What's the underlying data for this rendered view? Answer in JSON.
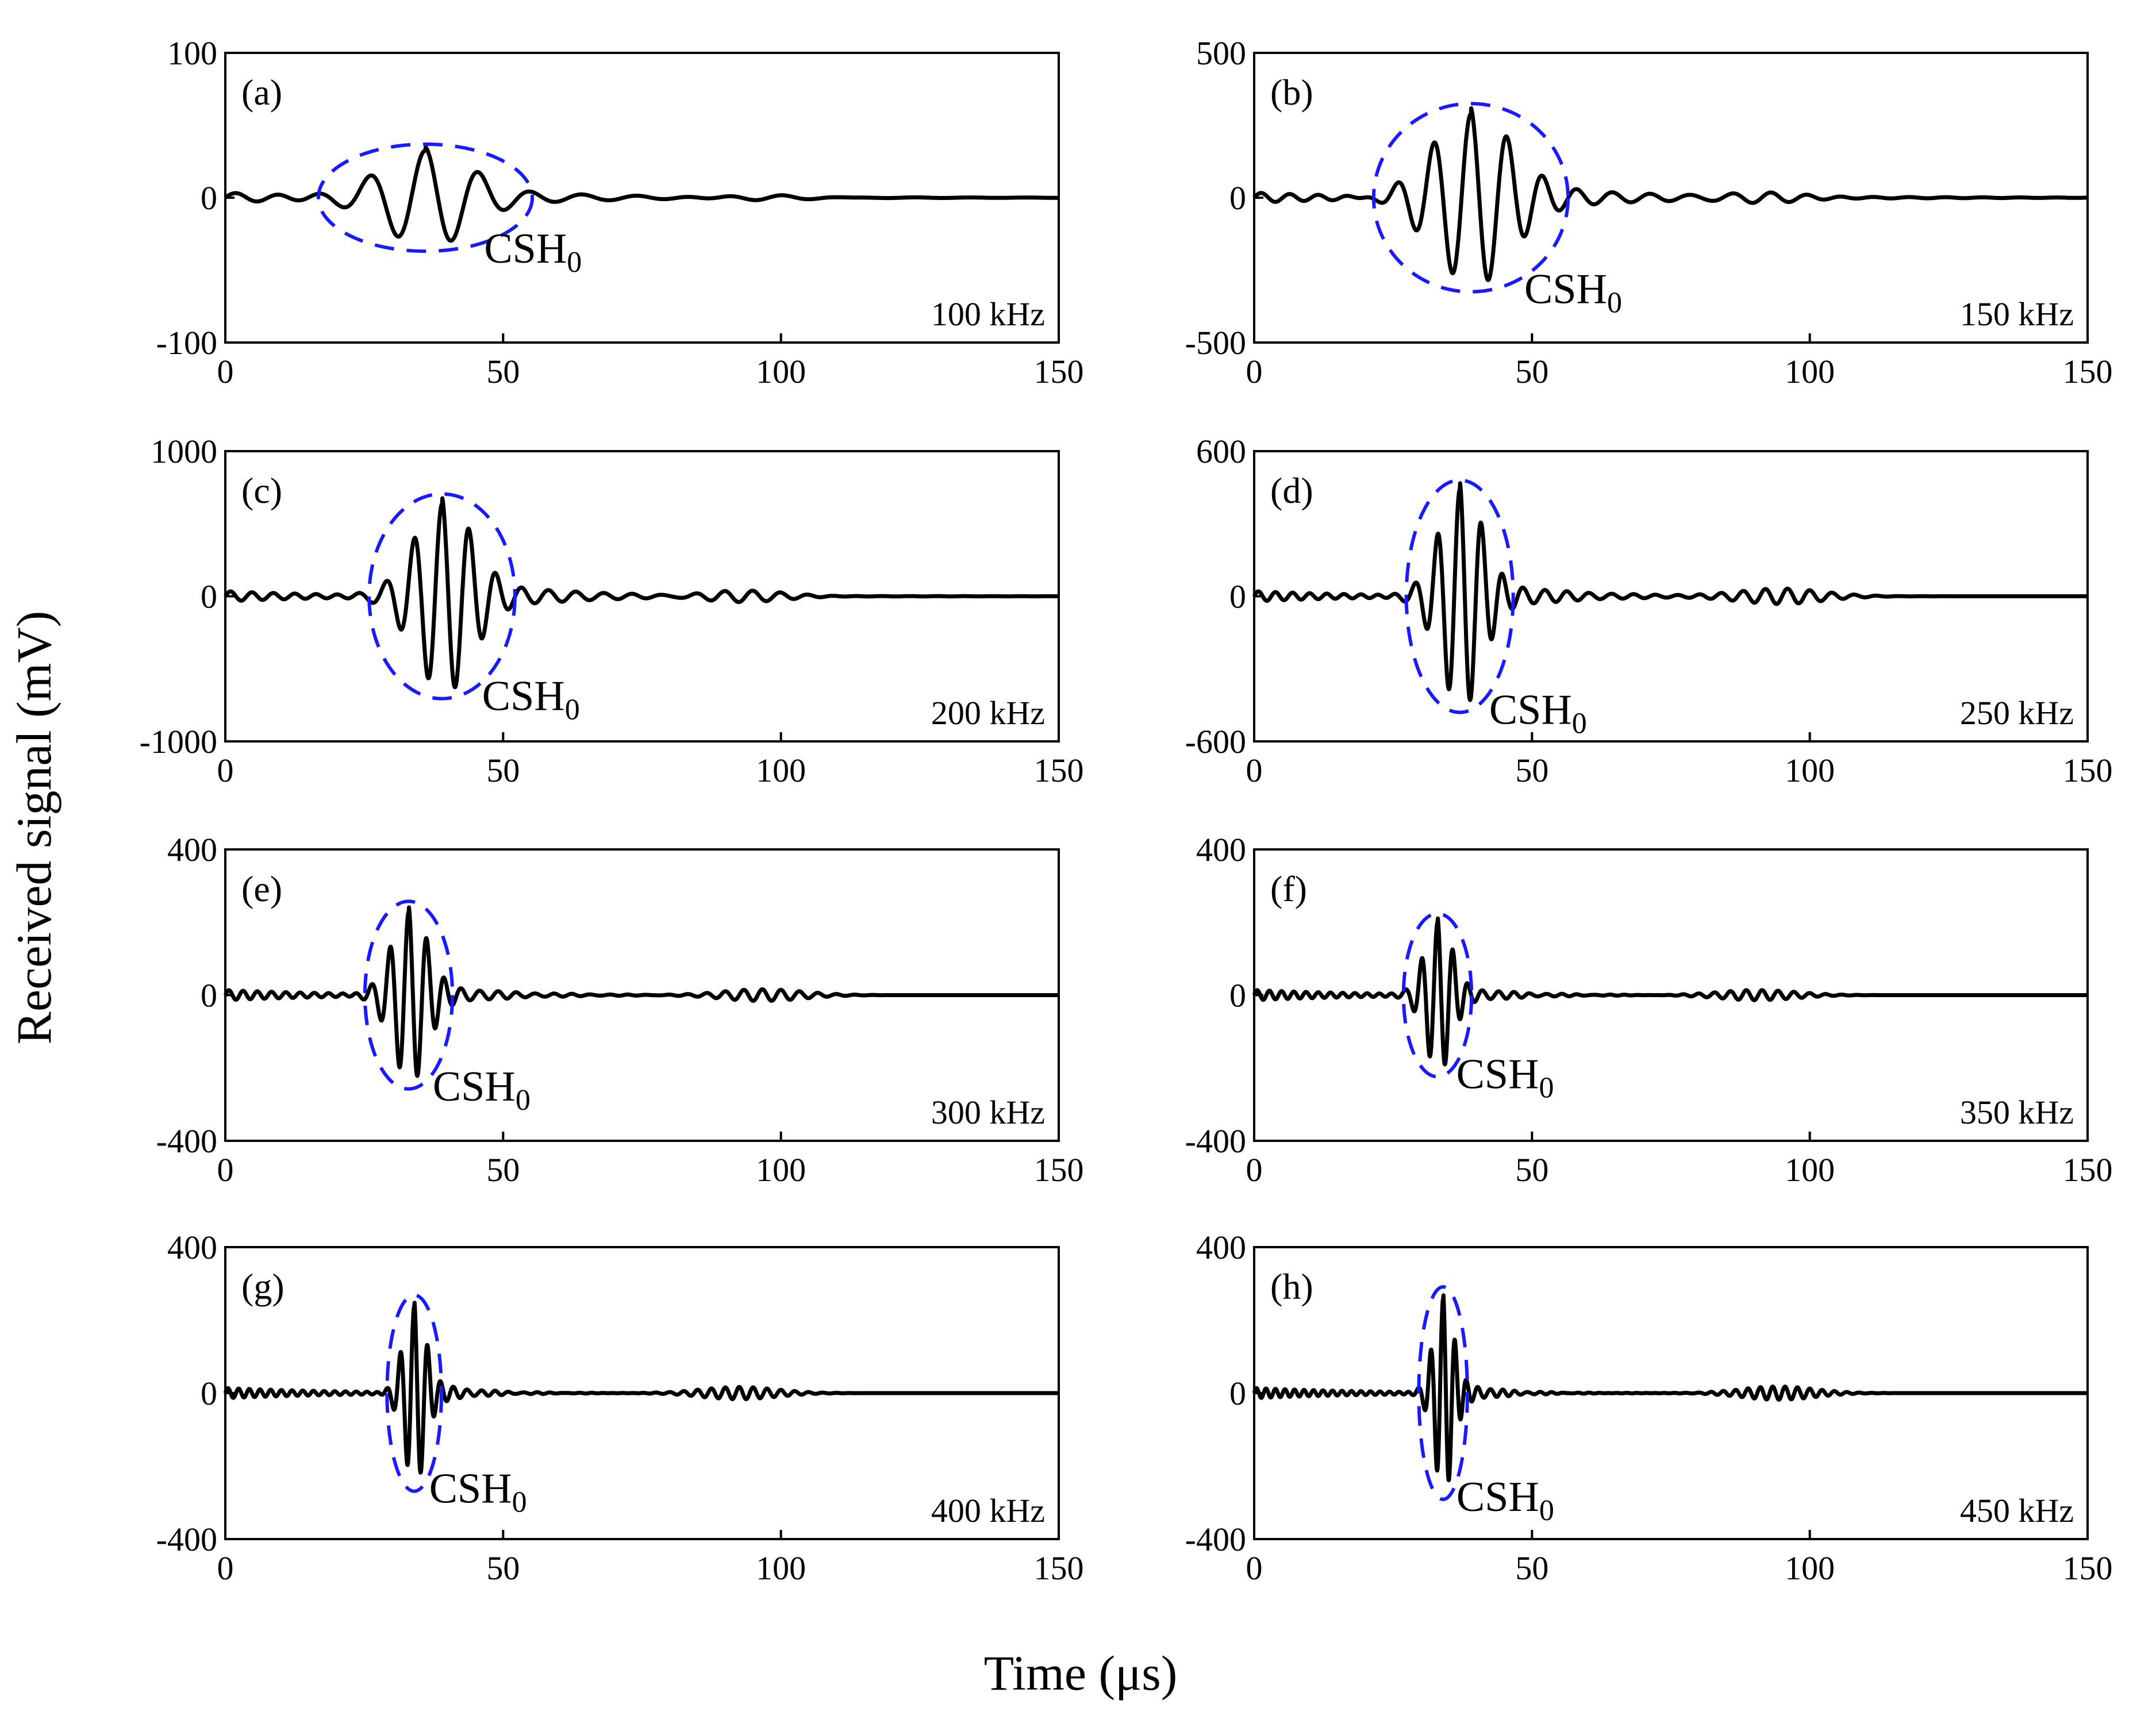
{
  "figure": {
    "xlabel": "Time (μs)",
    "ylabel": "Received signal (mV)"
  },
  "chart_data": [
    {
      "type": "line",
      "panel": "(a)",
      "frequency_label": "100 kHz",
      "mode_label": "CSH",
      "mode_subscript": "0",
      "xlim": [
        0,
        150
      ],
      "ylim": [
        -100,
        100
      ],
      "xticks": [
        0,
        50,
        100,
        150
      ],
      "yticks": [
        -100,
        0,
        100
      ],
      "packet": {
        "center_us": 36,
        "width_us": 11,
        "amplitude": 33,
        "freq_mhz": 0.1
      },
      "series": [
        {
          "name": "received signal",
          "x_unit": "μs",
          "y_unit": "mV"
        }
      ]
    },
    {
      "type": "line",
      "panel": "(b)",
      "frequency_label": "150 kHz",
      "mode_label": "CSH",
      "mode_subscript": "0",
      "xlim": [
        0,
        150
      ],
      "ylim": [
        -500,
        500
      ],
      "xticks": [
        0,
        50,
        100,
        150
      ],
      "yticks": [
        -500,
        0,
        500
      ],
      "packet": {
        "center_us": 39,
        "width_us": 10,
        "amplitude": 290,
        "freq_mhz": 0.15
      },
      "series": [
        {
          "name": "received signal",
          "x_unit": "μs",
          "y_unit": "mV"
        }
      ]
    },
    {
      "type": "line",
      "panel": "(c)",
      "frequency_label": "200 kHz",
      "mode_label": "CSH",
      "mode_subscript": "0",
      "xlim": [
        0,
        150
      ],
      "ylim": [
        -1000,
        1000
      ],
      "xticks": [
        0,
        50,
        100,
        150
      ],
      "yticks": [
        -1000,
        0,
        1000
      ],
      "packet": {
        "center_us": 39,
        "width_us": 7.5,
        "amplitude": 630,
        "freq_mhz": 0.2
      },
      "series": [
        {
          "name": "received signal",
          "x_unit": "μs",
          "y_unit": "mV"
        }
      ]
    },
    {
      "type": "line",
      "panel": "(d)",
      "frequency_label": "250 kHz",
      "mode_label": "CSH",
      "mode_subscript": "0",
      "xlim": [
        0,
        150
      ],
      "ylim": [
        -600,
        600
      ],
      "xticks": [
        0,
        50,
        100,
        150
      ],
      "yticks": [
        -600,
        0,
        600
      ],
      "packet": {
        "center_us": 37,
        "width_us": 5.5,
        "amplitude": 440,
        "freq_mhz": 0.25
      },
      "series": [
        {
          "name": "received signal",
          "x_unit": "μs",
          "y_unit": "mV"
        }
      ]
    },
    {
      "type": "line",
      "panel": "(e)",
      "frequency_label": "300 kHz",
      "mode_label": "CSH",
      "mode_subscript": "0",
      "xlim": [
        0,
        150
      ],
      "ylim": [
        -400,
        400
      ],
      "xticks": [
        0,
        50,
        100,
        150
      ],
      "yticks": [
        -400,
        0,
        400
      ],
      "packet": {
        "center_us": 33,
        "width_us": 4.5,
        "amplitude": 230,
        "freq_mhz": 0.3
      },
      "series": [
        {
          "name": "received signal",
          "x_unit": "μs",
          "y_unit": "mV"
        }
      ]
    },
    {
      "type": "line",
      "panel": "(f)",
      "frequency_label": "350 kHz",
      "mode_label": "CSH",
      "mode_subscript": "0",
      "xlim": [
        0,
        150
      ],
      "ylim": [
        -400,
        400
      ],
      "xticks": [
        0,
        50,
        100,
        150
      ],
      "yticks": [
        -400,
        0,
        400
      ],
      "packet": {
        "center_us": 33,
        "width_us": 3.5,
        "amplitude": 200,
        "freq_mhz": 0.35
      },
      "series": [
        {
          "name": "received signal",
          "x_unit": "μs",
          "y_unit": "mV"
        }
      ]
    },
    {
      "type": "line",
      "panel": "(g)",
      "frequency_label": "400 kHz",
      "mode_label": "CSH",
      "mode_subscript": "0",
      "xlim": [
        0,
        150
      ],
      "ylim": [
        -400,
        400
      ],
      "xticks": [
        0,
        50,
        100,
        150
      ],
      "yticks": [
        -400,
        0,
        400
      ],
      "packet": {
        "center_us": 34,
        "width_us": 2.8,
        "amplitude": 240,
        "freq_mhz": 0.4
      },
      "series": [
        {
          "name": "received signal",
          "x_unit": "μs",
          "y_unit": "mV"
        }
      ]
    },
    {
      "type": "line",
      "panel": "(h)",
      "frequency_label": "450 kHz",
      "mode_label": "CSH",
      "mode_subscript": "0",
      "xlim": [
        0,
        150
      ],
      "ylim": [
        -400,
        400
      ],
      "xticks": [
        0,
        50,
        100,
        150
      ],
      "yticks": [
        -400,
        0,
        400
      ],
      "packet": {
        "center_us": 34,
        "width_us": 2.5,
        "amplitude": 260,
        "freq_mhz": 0.45
      },
      "series": [
        {
          "name": "received signal",
          "x_unit": "μs",
          "y_unit": "mV"
        }
      ]
    }
  ],
  "colors": {
    "signal": "#000000",
    "ellipse": "#1a1aff",
    "axes": "#000000"
  }
}
